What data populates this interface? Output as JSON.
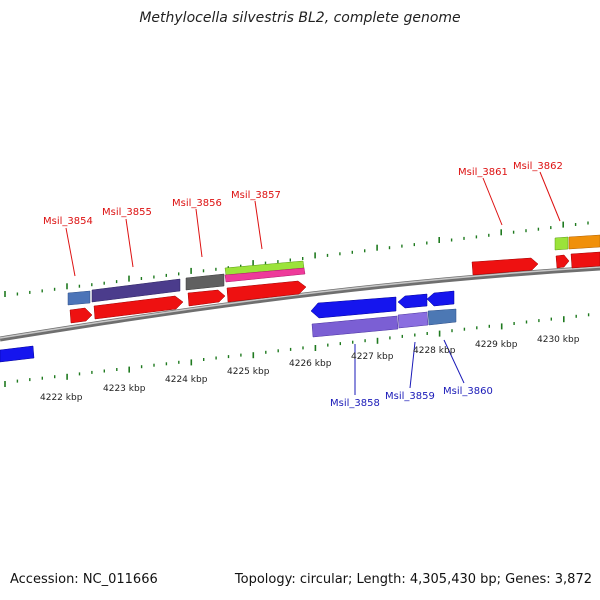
{
  "title": "Methylocella silvestris BL2, complete genome",
  "footer": {
    "accession": "Accession: NC_011666",
    "summary": "Topology: circular; Length: 4,305,430 bp; Genes: 3,872"
  },
  "colors": {
    "forward_label": "#dd1111",
    "reverse_label": "#1a1ab8",
    "tick": "#1f7a1f",
    "backbone": "#888888"
  },
  "kbp_ticks": [
    "4222 kbp",
    "4223 kbp",
    "4224 kbp",
    "4225 kbp",
    "4226 kbp",
    "4227 kbp",
    "4228 kbp",
    "4229 kbp",
    "4230 kbp"
  ],
  "forward_labels": [
    "Msil_3854",
    "Msil_3855",
    "Msil_3856",
    "Msil_3857",
    "Msil_3861",
    "Msil_3862"
  ],
  "reverse_labels": [
    "Msil_3858",
    "Msil_3859",
    "Msil_3860"
  ]
}
